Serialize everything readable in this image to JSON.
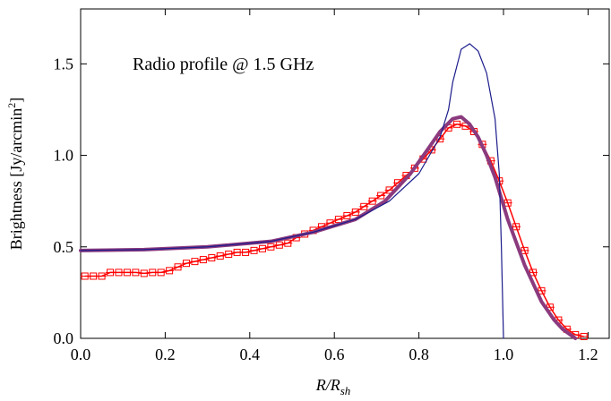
{
  "chart_data": {
    "type": "line",
    "annotation": "Radio profile @ 1.5 GHz",
    "x_label": {
      "main": "R/R",
      "sub": "sh"
    },
    "y_label": {
      "main": "Brightness  [Jy/arcmin",
      "sup": "2",
      "end": "]"
    },
    "xlim": [
      0,
      1.25
    ],
    "ylim": [
      0,
      1.8
    ],
    "xticks": [
      {
        "value": 0,
        "label": "0.0"
      },
      0.2,
      0.4,
      0.6,
      0.8,
      {
        "value": 1,
        "label": "1.0"
      },
      1.2
    ],
    "yticks": [
      {
        "value": 0,
        "label": "0.0"
      },
      0.5,
      {
        "value": 1,
        "label": "1.0"
      },
      1.5
    ],
    "series": [
      {
        "style": "points",
        "color": "#ff0000",
        "x": [
          0.01,
          0.03,
          0.05,
          0.07,
          0.09,
          0.11,
          0.13,
          0.15,
          0.17,
          0.19,
          0.21,
          0.23,
          0.25,
          0.27,
          0.29,
          0.31,
          0.33,
          0.35,
          0.37,
          0.39,
          0.41,
          0.43,
          0.45,
          0.47,
          0.49,
          0.51,
          0.53,
          0.55,
          0.57,
          0.59,
          0.61,
          0.63,
          0.65,
          0.67,
          0.69,
          0.71,
          0.73,
          0.75,
          0.77,
          0.79,
          0.81,
          0.83,
          0.85,
          0.87,
          0.89,
          0.91,
          0.93,
          0.95,
          0.97,
          0.99,
          1.01,
          1.03,
          1.05,
          1.07,
          1.09,
          1.11,
          1.13,
          1.15,
          1.17,
          1.19
        ],
        "values": [
          0.34,
          0.34,
          0.34,
          0.36,
          0.36,
          0.36,
          0.36,
          0.355,
          0.36,
          0.36,
          0.37,
          0.39,
          0.41,
          0.42,
          0.43,
          0.44,
          0.45,
          0.46,
          0.47,
          0.47,
          0.48,
          0.49,
          0.5,
          0.51,
          0.52,
          0.55,
          0.57,
          0.59,
          0.61,
          0.63,
          0.65,
          0.67,
          0.69,
          0.72,
          0.75,
          0.78,
          0.81,
          0.85,
          0.89,
          0.93,
          0.98,
          1.03,
          1.09,
          1.15,
          1.17,
          1.16,
          1.13,
          1.06,
          0.97,
          0.86,
          0.74,
          0.61,
          0.48,
          0.36,
          0.26,
          0.17,
          0.1,
          0.05,
          0.02,
          0.01
        ]
      },
      {
        "style": "thick",
        "color": "#8b3a7e",
        "x": [
          0,
          0.15,
          0.3,
          0.45,
          0.55,
          0.65,
          0.72,
          0.78,
          0.82,
          0.85,
          0.88,
          0.9,
          0.92,
          0.94,
          0.96,
          0.98,
          1.01,
          1.05,
          1.09,
          1.12,
          1.14,
          1.17
        ],
        "values": [
          0.48,
          0.485,
          0.5,
          0.53,
          0.58,
          0.65,
          0.75,
          0.9,
          1.03,
          1.13,
          1.2,
          1.21,
          1.17,
          1.1,
          1.0,
          0.88,
          0.65,
          0.4,
          0.2,
          0.1,
          0.05,
          0
        ]
      },
      {
        "style": "thin",
        "color": "#1c1c8c",
        "x": [
          0,
          0.15,
          0.3,
          0.45,
          0.55,
          0.65,
          0.73,
          0.8,
          0.85,
          0.87,
          0.88,
          0.9,
          0.92,
          0.94,
          0.96,
          0.98,
          0.99,
          0.995,
          1.0
        ],
        "values": [
          0.48,
          0.485,
          0.5,
          0.53,
          0.58,
          0.65,
          0.75,
          0.9,
          1.1,
          1.25,
          1.4,
          1.58,
          1.61,
          1.57,
          1.45,
          1.2,
          0.9,
          0.5,
          0
        ]
      }
    ]
  }
}
